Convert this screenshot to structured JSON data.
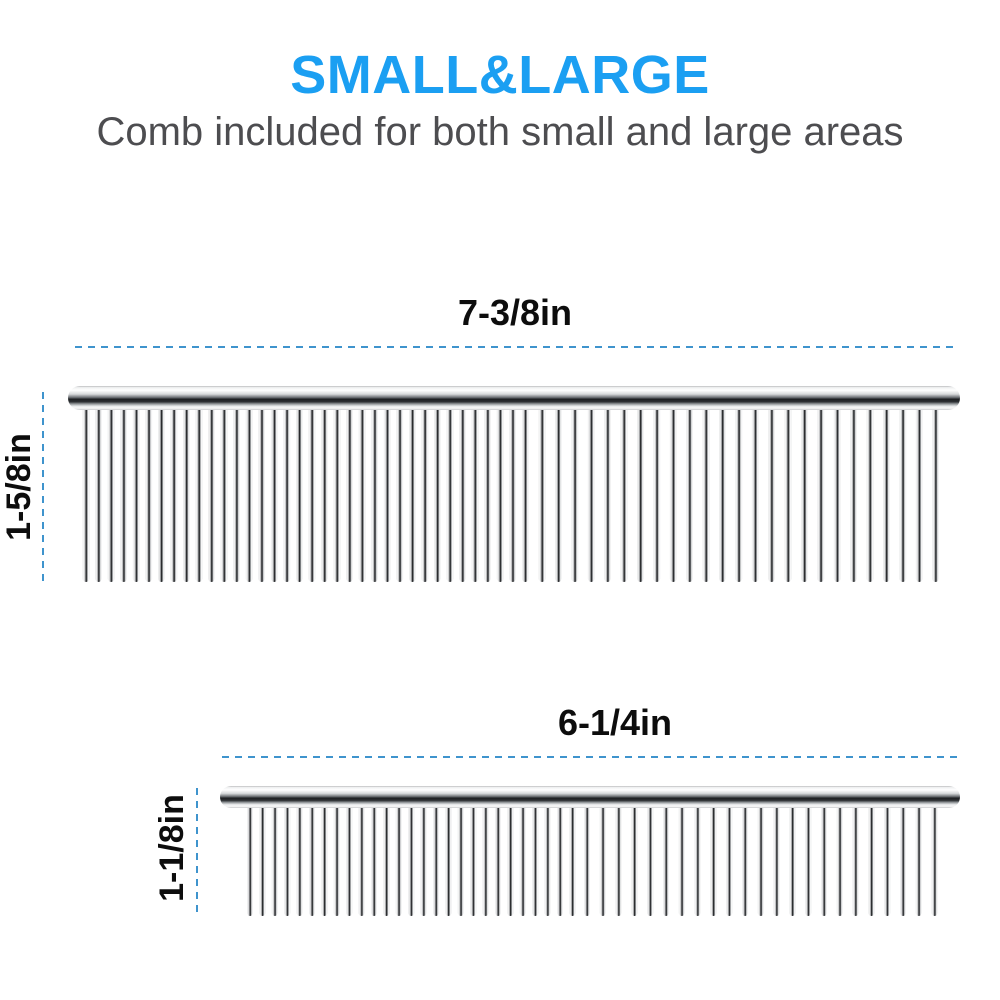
{
  "header": {
    "title": "SMALL&LARGE",
    "subtitle": "Comb included for both small and large areas"
  },
  "colors": {
    "title_blue": "#1b9ff2",
    "subtitle_gray": "#4d4d50",
    "dimension_text": "#0d0d0d",
    "dashed_line_blue": "#3f94cd",
    "comb_dark_band": "#1d1f22"
  },
  "combs": {
    "large": {
      "width_label": "7-3/8in",
      "height_label": "1-5/8in",
      "teeth_fine_count": 36,
      "teeth_coarse_count": 25
    },
    "small": {
      "width_label": "6-1/4in",
      "height_label": "1-1/8in",
      "teeth_fine_count": 27,
      "teeth_coarse_count": 23
    }
  }
}
